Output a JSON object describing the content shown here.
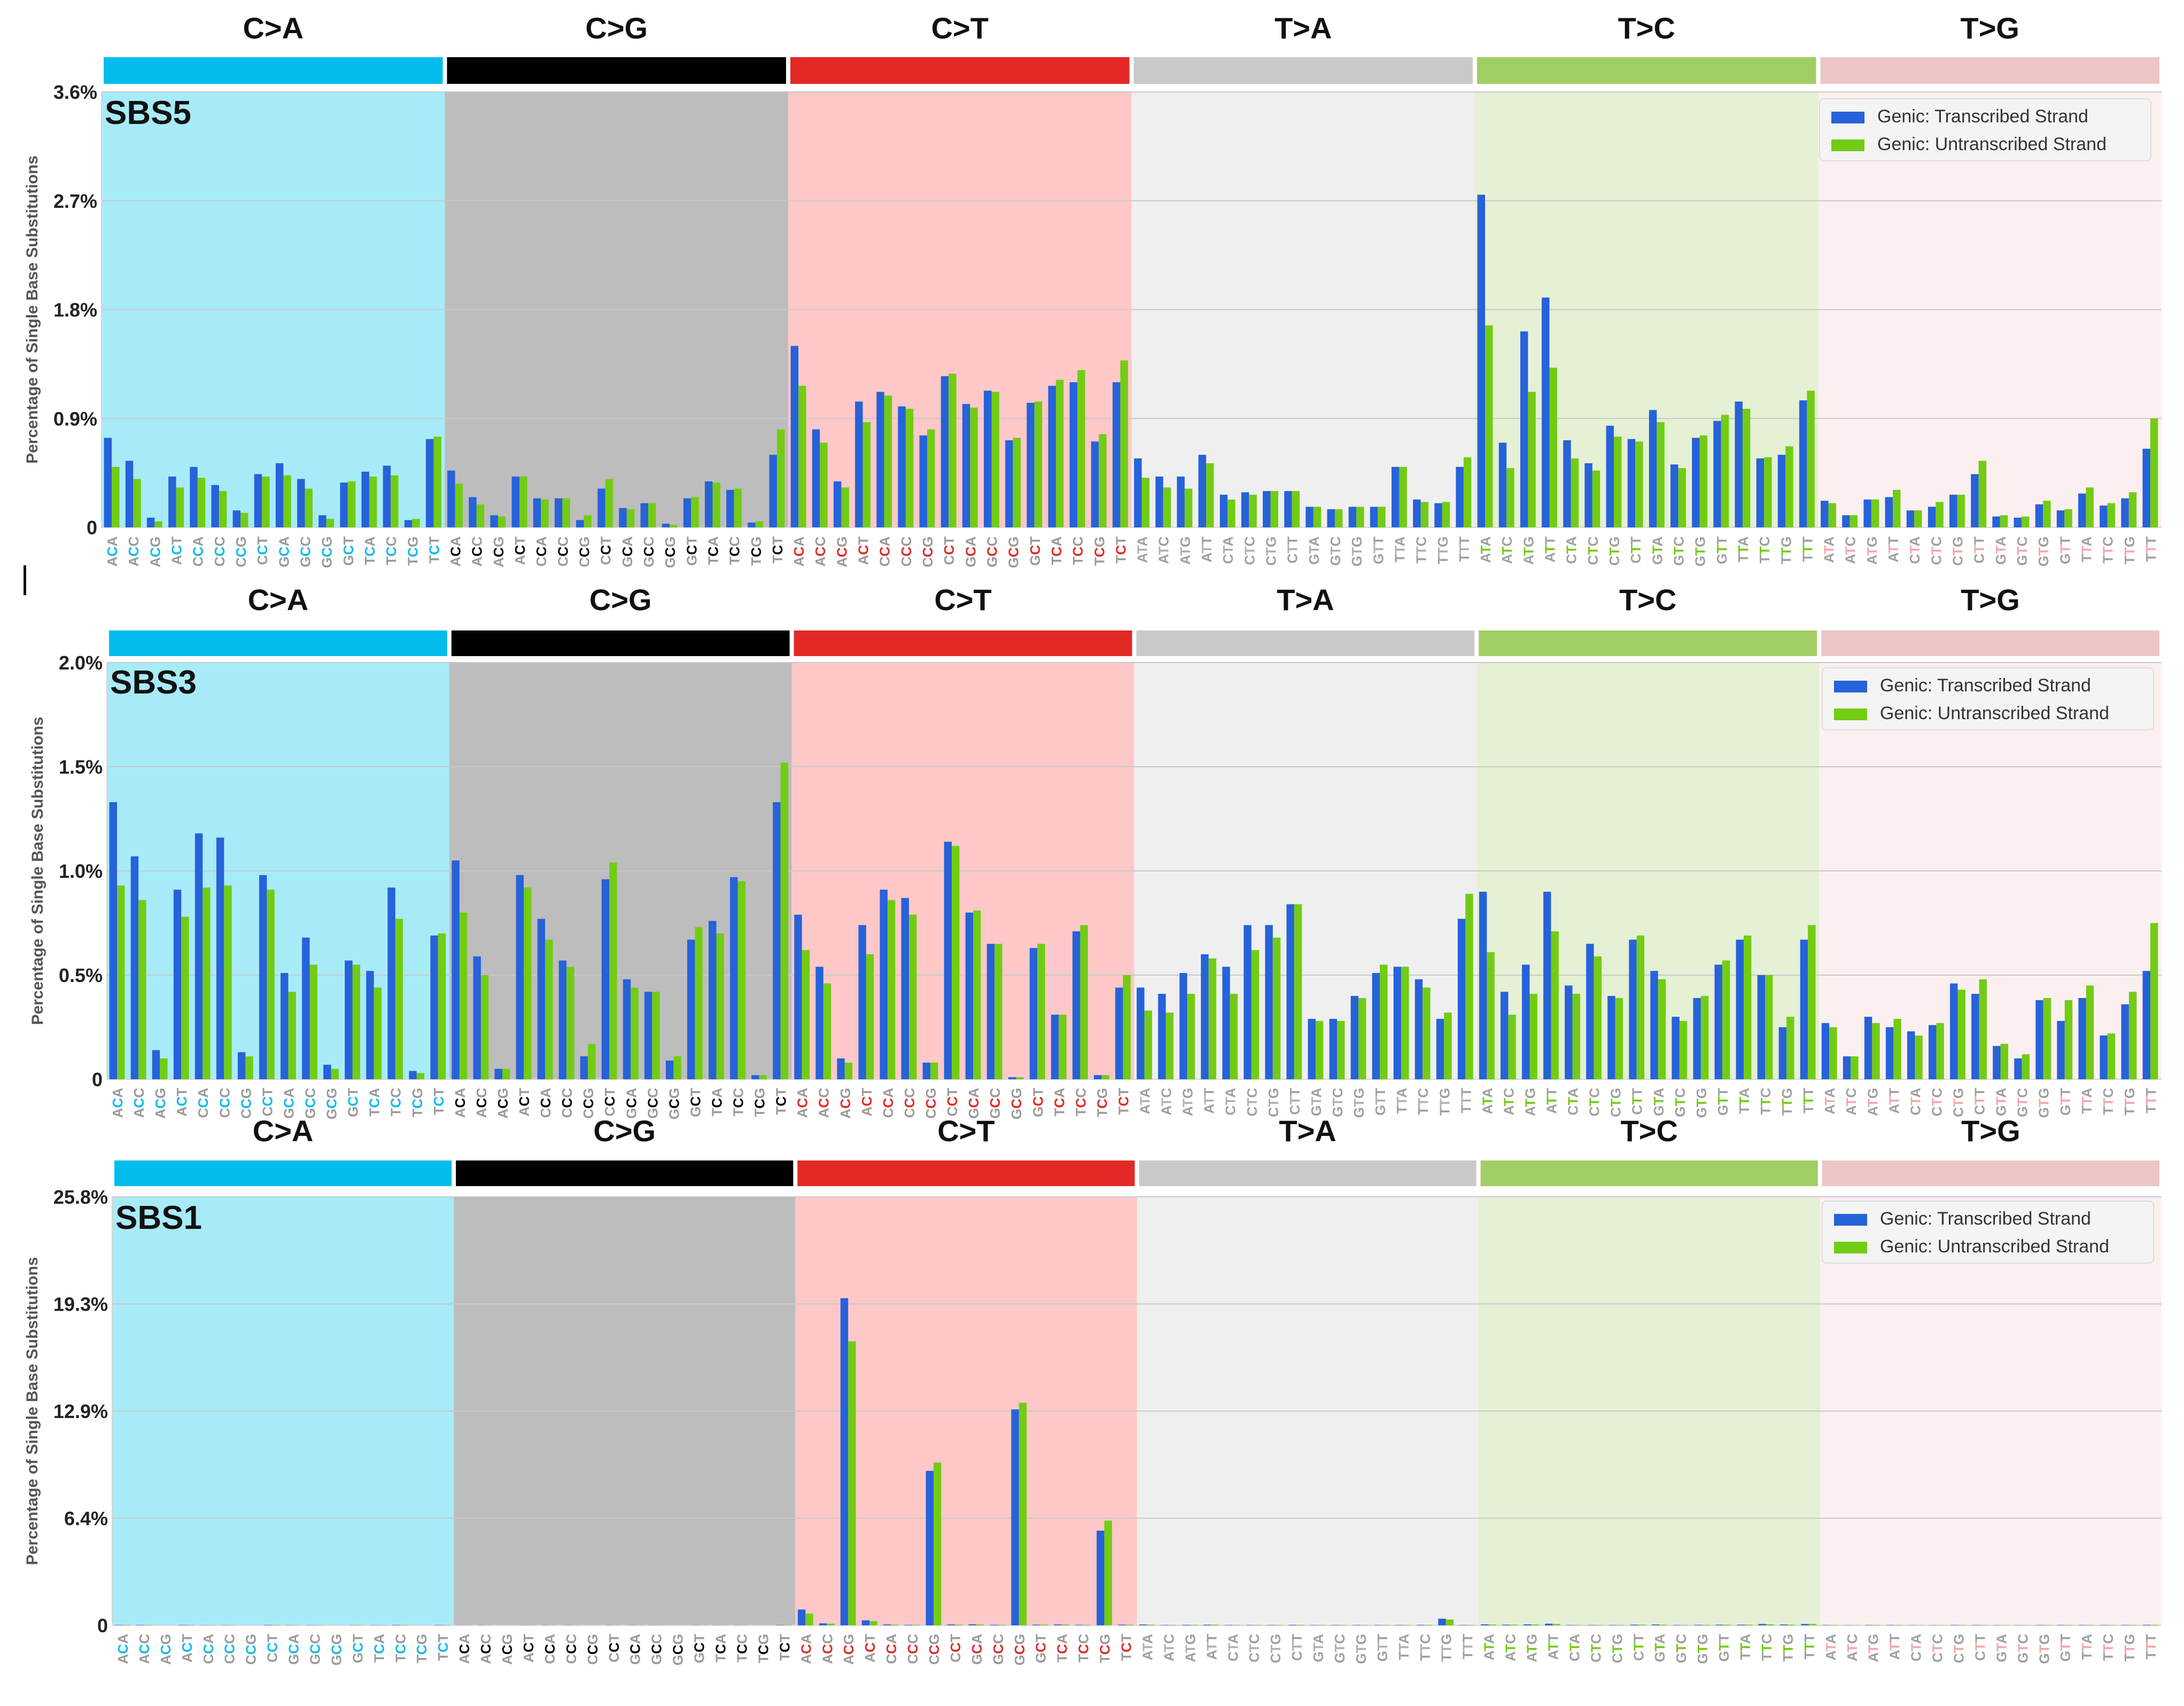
{
  "figure": {
    "ylabel": "Percentage of Single Base Substitutions",
    "legend": [
      "Genic: Transcribed Strand",
      "Genic: Untranscribed Strand"
    ],
    "mutation_types": [
      "C>A",
      "C>G",
      "C>T",
      "T>A",
      "T>C",
      "T>G"
    ],
    "type_colors": [
      "#03bcee",
      "#010101",
      "#e32926",
      "#cac9c9",
      "#a1ce63",
      "#ebc6c4"
    ],
    "band_colors": [
      "#a8ebf8",
      "#bdbdbd",
      "#fec8c8",
      "#efefef",
      "#e5f0d4",
      "#fcefef"
    ],
    "strand_colors": [
      "#2662d9",
      "#72cc14"
    ],
    "contexts": [
      "A_A",
      "A_C",
      "A_G",
      "A_T",
      "C_A",
      "C_C",
      "C_G",
      "C_T",
      "G_A",
      "G_C",
      "G_G",
      "G_T",
      "T_A",
      "T_C",
      "T_G",
      "T_T"
    ],
    "context_colors": [
      "#03bcee",
      "#000000",
      "#e32926",
      "#b0b0b0",
      "#72cc14",
      "#f4a7a7"
    ],
    "context_base_colors": [
      "#9a9a9a",
      "#9a9a9a",
      "#9a9a9a",
      "#a0a0a0",
      "#a0a0a0",
      "#a0a0a0"
    ],
    "ref_bases": [
      "C",
      "C",
      "C",
      "T",
      "T",
      "T"
    ]
  },
  "chart_data": [
    {
      "type": "bar",
      "title": "SBS5",
      "xlabel": "",
      "ylabel": "Percentage of Single Base Substitutions",
      "yticks": [
        "0",
        "0.9%",
        "1.8%",
        "2.7%",
        "3.6%"
      ],
      "ylim": [
        0,
        3.6
      ],
      "legend_position": "top-right",
      "categories": [
        "C>A",
        "C>G",
        "C>T",
        "T>A",
        "T>C",
        "T>G"
      ],
      "series": [
        {
          "name": "Genic: Transcribed Strand",
          "values": [
            [
              0.74,
              0.55,
              0.08,
              0.42,
              0.5,
              0.35,
              0.14,
              0.44,
              0.53,
              0.4,
              0.1,
              0.37,
              0.46,
              0.51,
              0.06,
              0.73
            ],
            [
              0.47,
              0.25,
              0.1,
              0.42,
              0.24,
              0.24,
              0.06,
              0.32,
              0.16,
              0.2,
              0.03,
              0.24,
              0.38,
              0.31,
              0.04,
              0.6
            ],
            [
              1.5,
              0.81,
              0.38,
              1.04,
              1.12,
              1.0,
              0.76,
              1.25,
              1.02,
              1.13,
              0.72,
              1.03,
              1.17,
              1.2,
              0.71,
              1.2
            ],
            [
              0.57,
              0.42,
              0.42,
              0.6,
              0.27,
              0.29,
              0.3,
              0.3,
              0.17,
              0.15,
              0.17,
              0.17,
              0.5,
              0.23,
              0.2,
              0.5
            ],
            [
              2.75,
              0.7,
              1.62,
              1.9,
              0.72,
              0.53,
              0.84,
              0.73,
              0.97,
              0.52,
              0.74,
              0.88,
              1.04,
              0.57,
              0.6,
              1.05
            ],
            [
              0.22,
              0.1,
              0.23,
              0.25,
              0.14,
              0.17,
              0.27,
              0.44,
              0.09,
              0.08,
              0.19,
              0.14,
              0.28,
              0.18,
              0.24,
              0.65
            ]
          ]
        },
        {
          "name": "Genic: Untranscribed Strand",
          "values": [
            [
              0.5,
              0.4,
              0.05,
              0.33,
              0.41,
              0.3,
              0.12,
              0.42,
              0.43,
              0.32,
              0.07,
              0.38,
              0.42,
              0.43,
              0.07,
              0.75
            ],
            [
              0.36,
              0.19,
              0.09,
              0.42,
              0.23,
              0.24,
              0.1,
              0.4,
              0.15,
              0.2,
              0.02,
              0.25,
              0.37,
              0.32,
              0.05,
              0.81
            ],
            [
              1.17,
              0.7,
              0.33,
              0.87,
              1.09,
              0.98,
              0.81,
              1.27,
              0.99,
              1.12,
              0.74,
              1.04,
              1.22,
              1.3,
              0.77,
              1.38
            ],
            [
              0.41,
              0.33,
              0.32,
              0.53,
              0.23,
              0.27,
              0.3,
              0.3,
              0.17,
              0.15,
              0.17,
              0.17,
              0.5,
              0.21,
              0.21,
              0.58
            ],
            [
              1.67,
              0.49,
              1.12,
              1.32,
              0.57,
              0.47,
              0.75,
              0.71,
              0.87,
              0.49,
              0.76,
              0.93,
              0.98,
              0.58,
              0.67,
              1.13
            ],
            [
              0.2,
              0.1,
              0.23,
              0.31,
              0.14,
              0.21,
              0.27,
              0.55,
              0.1,
              0.09,
              0.22,
              0.15,
              0.33,
              0.2,
              0.29,
              0.9
            ]
          ]
        }
      ]
    },
    {
      "type": "bar",
      "title": "SBS3",
      "xlabel": "",
      "ylabel": "Percentage of Single Base Substitutions",
      "yticks": [
        "0",
        "0.5%",
        "1.0%",
        "1.5%",
        "2.0%"
      ],
      "ylim": [
        0,
        2.0
      ],
      "legend_position": "top-right",
      "categories": [
        "C>A",
        "C>G",
        "C>T",
        "T>A",
        "T>C",
        "T>G"
      ],
      "series": [
        {
          "name": "Genic: Transcribed Strand",
          "values": [
            [
              1.33,
              1.07,
              0.14,
              0.91,
              1.18,
              1.16,
              0.13,
              0.98,
              0.51,
              0.68,
              0.07,
              0.57,
              0.52,
              0.92,
              0.04,
              0.69
            ],
            [
              1.05,
              0.59,
              0.05,
              0.98,
              0.77,
              0.57,
              0.11,
              0.96,
              0.48,
              0.42,
              0.09,
              0.67,
              0.76,
              0.97,
              0.02,
              1.33
            ],
            [
              0.79,
              0.54,
              0.1,
              0.74,
              0.91,
              0.87,
              0.08,
              1.14,
              0.8,
              0.65,
              0.01,
              0.63,
              0.31,
              0.71,
              0.02,
              0.44
            ],
            [
              0.44,
              0.41,
              0.51,
              0.6,
              0.54,
              0.74,
              0.74,
              0.84,
              0.29,
              0.29,
              0.4,
              0.51,
              0.54,
              0.48,
              0.29,
              0.77
            ],
            [
              0.9,
              0.42,
              0.55,
              0.9,
              0.45,
              0.65,
              0.4,
              0.67,
              0.52,
              0.3,
              0.39,
              0.55,
              0.67,
              0.5,
              0.25,
              0.67
            ],
            [
              0.27,
              0.11,
              0.3,
              0.25,
              0.23,
              0.26,
              0.46,
              0.41,
              0.16,
              0.1,
              0.38,
              0.28,
              0.39,
              0.21,
              0.36,
              0.52
            ]
          ]
        },
        {
          "name": "Genic: Untranscribed Strand",
          "values": [
            [
              0.93,
              0.86,
              0.1,
              0.78,
              0.92,
              0.93,
              0.11,
              0.91,
              0.42,
              0.55,
              0.05,
              0.55,
              0.44,
              0.77,
              0.03,
              0.7
            ],
            [
              0.8,
              0.5,
              0.05,
              0.92,
              0.67,
              0.54,
              0.17,
              1.04,
              0.44,
              0.42,
              0.11,
              0.73,
              0.7,
              0.95,
              0.02,
              1.52
            ],
            [
              0.62,
              0.46,
              0.08,
              0.6,
              0.86,
              0.79,
              0.08,
              1.12,
              0.81,
              0.65,
              0.01,
              0.65,
              0.31,
              0.74,
              0.02,
              0.5
            ],
            [
              0.33,
              0.32,
              0.41,
              0.58,
              0.41,
              0.62,
              0.68,
              0.84,
              0.28,
              0.28,
              0.39,
              0.55,
              0.54,
              0.44,
              0.32,
              0.89
            ],
            [
              0.61,
              0.31,
              0.41,
              0.71,
              0.41,
              0.59,
              0.39,
              0.69,
              0.48,
              0.28,
              0.4,
              0.57,
              0.69,
              0.5,
              0.3,
              0.74
            ],
            [
              0.25,
              0.11,
              0.27,
              0.29,
              0.21,
              0.27,
              0.43,
              0.48,
              0.17,
              0.12,
              0.39,
              0.38,
              0.45,
              0.22,
              0.42,
              0.75
            ]
          ]
        }
      ]
    },
    {
      "type": "bar",
      "title": "SBS1",
      "xlabel": "",
      "ylabel": "Percentage of Single Base Substitutions",
      "yticks": [
        "0",
        "6.4%",
        "12.9%",
        "19.3%",
        "25.8%"
      ],
      "ylim": [
        0,
        25.8
      ],
      "legend_position": "top-right",
      "categories": [
        "C>A",
        "C>G",
        "C>T",
        "T>A",
        "T>C",
        "T>G"
      ],
      "series": [
        {
          "name": "Genic: Transcribed Strand",
          "values": [
            [
              0.02,
              0.02,
              0,
              0.02,
              0.01,
              0.01,
              0,
              0.02,
              0.01,
              0.01,
              0,
              0.01,
              0.01,
              0.02,
              0,
              0.02
            ],
            [
              0.01,
              0.01,
              0,
              0.01,
              0.01,
              0.01,
              0,
              0.01,
              0.01,
              0.01,
              0,
              0.01,
              0.01,
              0.01,
              0,
              0.02
            ],
            [
              0.95,
              0.12,
              19.7,
              0.3,
              0.05,
              0.03,
              9.3,
              0.05,
              0.06,
              0.03,
              13.0,
              0.04,
              0.05,
              0.03,
              5.7,
              0.04
            ],
            [
              0.05,
              0.02,
              0.03,
              0.04,
              0.02,
              0.02,
              0.02,
              0.03,
              0.02,
              0.02,
              0.02,
              0.02,
              0.02,
              0.03,
              0.4,
              0.02
            ],
            [
              0.06,
              0.04,
              0.06,
              0.1,
              0.02,
              0.02,
              0.02,
              0.04,
              0.05,
              0.02,
              0.03,
              0.04,
              0.04,
              0.08,
              0.05,
              0.08
            ],
            [
              0.02,
              0.01,
              0.02,
              0.02,
              0.01,
              0.01,
              0.02,
              0.02,
              0.01,
              0.01,
              0.02,
              0.02,
              0.02,
              0.02,
              0.02,
              0.03
            ]
          ]
        },
        {
          "name": "Genic: Untranscribed Strand",
          "values": [
            [
              0.02,
              0.02,
              0,
              0.02,
              0.01,
              0.01,
              0,
              0.02,
              0.01,
              0.01,
              0,
              0.01,
              0.01,
              0.02,
              0,
              0.02
            ],
            [
              0.01,
              0.01,
              0,
              0.01,
              0.01,
              0.01,
              0,
              0.01,
              0.01,
              0.01,
              0,
              0.01,
              0.01,
              0.01,
              0,
              0.02
            ],
            [
              0.7,
              0.1,
              17.1,
              0.25,
              0.04,
              0.03,
              9.8,
              0.04,
              0.05,
              0.03,
              13.4,
              0.04,
              0.05,
              0.03,
              6.3,
              0.04
            ],
            [
              0.04,
              0.02,
              0.03,
              0.04,
              0.02,
              0.02,
              0.02,
              0.03,
              0.02,
              0.02,
              0.02,
              0.02,
              0.02,
              0.03,
              0.35,
              0.02
            ],
            [
              0.05,
              0.04,
              0.05,
              0.08,
              0.02,
              0.02,
              0.02,
              0.04,
              0.04,
              0.02,
              0.03,
              0.04,
              0.04,
              0.06,
              0.04,
              0.08
            ],
            [
              0.02,
              0.01,
              0.02,
              0.02,
              0.01,
              0.01,
              0.02,
              0.02,
              0.01,
              0.01,
              0.02,
              0.02,
              0.02,
              0.02,
              0.02,
              0.03
            ]
          ]
        }
      ]
    }
  ]
}
